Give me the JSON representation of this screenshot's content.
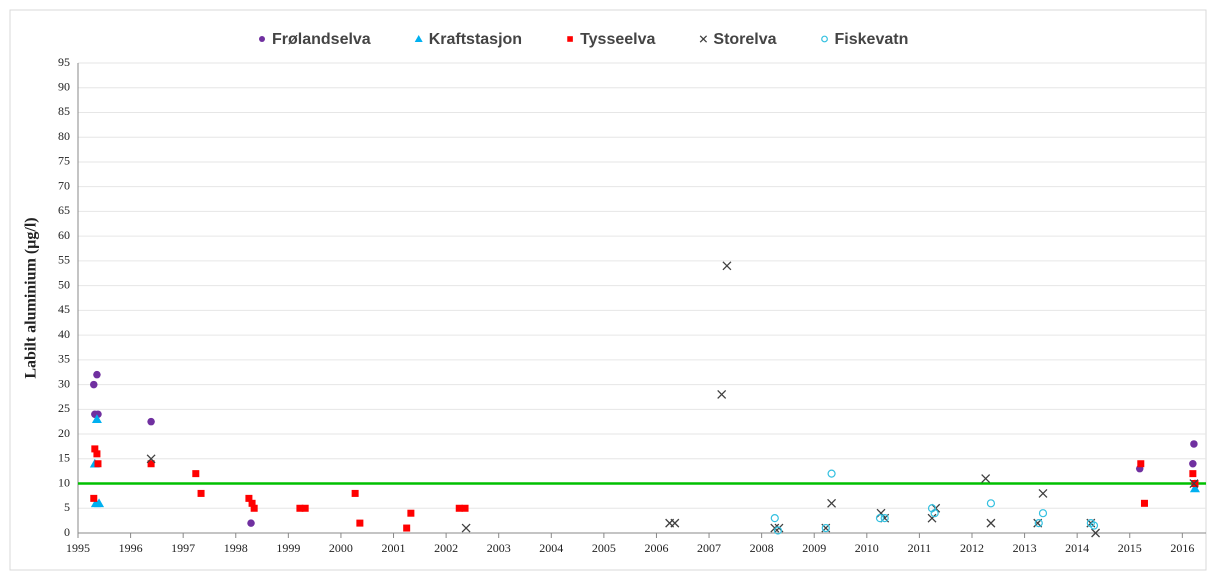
{
  "chart_data": {
    "type": "scatter",
    "y_label": "Labilt aluminium (µg/l)",
    "xlim": [
      1995,
      2016.45
    ],
    "ylim": [
      0,
      95
    ],
    "xticks": [
      1995,
      1996,
      1997,
      1998,
      1999,
      2000,
      2001,
      2002,
      2003,
      2004,
      2005,
      2006,
      2007,
      2008,
      2009,
      2010,
      2011,
      2012,
      2013,
      2014,
      2015,
      2016
    ],
    "yticks": [
      0,
      5,
      10,
      15,
      20,
      25,
      30,
      35,
      40,
      45,
      50,
      55,
      60,
      65,
      70,
      75,
      80,
      85,
      90,
      95
    ],
    "grid": true,
    "legend": "top",
    "reference_line": {
      "value": 10,
      "color": "#00c000"
    },
    "series": [
      {
        "name": "Frølandselva",
        "color": "#7030a0",
        "marker": "circle",
        "x": [
          1995.3,
          1995.36,
          1995.32,
          1995.38,
          1996.39,
          1998.29,
          2015.19,
          2016.22,
          2016.2,
          2016.24
        ],
        "values": [
          30,
          32,
          24,
          24,
          22.5,
          2,
          13,
          18,
          14,
          10
        ]
      },
      {
        "name": "Kraftstasjon",
        "color": "#00b0f0",
        "marker": "triangle",
        "x": [
          1995.32,
          1995.36,
          1995.34,
          1995.4,
          2016.24
        ],
        "values": [
          14,
          23,
          6,
          6,
          9
        ]
      },
      {
        "name": "Tysseelva",
        "color": "#ff0000",
        "marker": "square",
        "x": [
          1995.32,
          1995.36,
          1995.38,
          1995.3,
          1996.39,
          1997.24,
          1997.34,
          1998.25,
          1998.31,
          1998.35,
          1999.22,
          1999.32,
          2000.27,
          2000.36,
          2001.25,
          2001.33,
          2002.25,
          2002.36,
          2015.21,
          2015.28,
          2016.2,
          2016.24
        ],
        "values": [
          17,
          16,
          14,
          7,
          14,
          12,
          8,
          7,
          6,
          5,
          5,
          5,
          8,
          2,
          1,
          4,
          5,
          5,
          14,
          6,
          12,
          10
        ]
      },
      {
        "name": "Storelva",
        "color": "#404040",
        "marker": "cross",
        "x": [
          1996.39,
          2002.38,
          2006.25,
          2006.35,
          2007.24,
          2007.34,
          2008.25,
          2008.33,
          2009.22,
          2009.33,
          2010.27,
          2010.34,
          2011.24,
          2011.31,
          2012.26,
          2012.36,
          2013.25,
          2013.35,
          2014.26,
          2014.35,
          2016.22
        ],
        "values": [
          15,
          1,
          2,
          2,
          28,
          54,
          1,
          1,
          1,
          6,
          4,
          3,
          3,
          5,
          11,
          2,
          2,
          8,
          2,
          0,
          10
        ]
      },
      {
        "name": "Fiskevatn",
        "color": "#33c0e0",
        "marker": "open-circle",
        "x": [
          2008.25,
          2008.31,
          2009.22,
          2009.33,
          2010.25,
          2010.34,
          2011.24,
          2011.29,
          2012.36,
          2013.27,
          2013.35,
          2014.26,
          2014.32
        ],
        "values": [
          3,
          0.5,
          1,
          12,
          3,
          3,
          5,
          4,
          6,
          2,
          4,
          2,
          1.5
        ]
      }
    ]
  }
}
